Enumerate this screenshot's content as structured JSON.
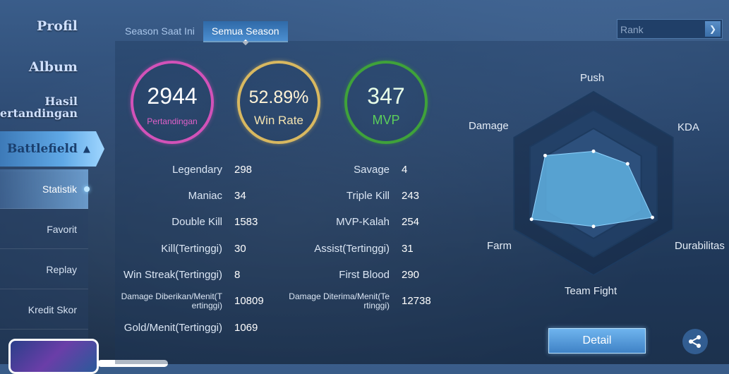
{
  "sidebar": {
    "profil": "Profil",
    "album": "Album",
    "hasil_line1": "Hasil",
    "hasil_line2": "Pertandingan",
    "battlefield": "Battlefield",
    "sub_items": [
      "Statistik",
      "Favorit",
      "Replay",
      "Kredit Skor"
    ]
  },
  "tabs": [
    "Season Saat Ini",
    "Semua Season"
  ],
  "active_tab": "Semua Season",
  "rank_select": {
    "value": "Rank"
  },
  "circles": [
    {
      "value": "2944",
      "label": "Pertandingan",
      "color": "#d252b8"
    },
    {
      "value": "52.89%",
      "label": "Win Rate",
      "color": "#d8b860"
    },
    {
      "value": "347",
      "label": "MVP",
      "color": "#3fa23a"
    }
  ],
  "stats_left": [
    {
      "label": "Legendary",
      "value": "298"
    },
    {
      "label": "Maniac",
      "value": "34"
    },
    {
      "label": "Double Kill",
      "value": "1583"
    },
    {
      "label": "Kill(Tertinggi)",
      "value": "30"
    },
    {
      "label": "Win Streak(Tertinggi)",
      "value": "8"
    },
    {
      "label_line1": "Damage Diberikan/Menit(T",
      "label_line2": "ertinggi)",
      "value": "10809"
    },
    {
      "label": "Gold/Menit(Tertinggi)",
      "value": "1069"
    }
  ],
  "stats_right": [
    {
      "label": "Savage",
      "value": "4"
    },
    {
      "label": "Triple Kill",
      "value": "243"
    },
    {
      "label": "MVP-Kalah",
      "value": "254"
    },
    {
      "label": "Assist(Tertinggi)",
      "value": "31"
    },
    {
      "label": "First Blood",
      "value": "290"
    },
    {
      "label_line1": "Damage Diterima/Menit(Te",
      "label_line2": "rtinggi)",
      "value": "12738"
    }
  ],
  "radar": {
    "labels": [
      "Push",
      "KDA",
      "Durabilitas",
      "Team Fight",
      "Farm",
      "Damage"
    ],
    "values": [
      0.45,
      0.55,
      0.95,
      0.6,
      1.0,
      0.78
    ],
    "fill_color": "#5fb0e0"
  },
  "detail_label": "Detail",
  "icons": {
    "share": "share-icon",
    "chevron": "chevron-down-icon",
    "collapse": "chevron-up-icon"
  }
}
